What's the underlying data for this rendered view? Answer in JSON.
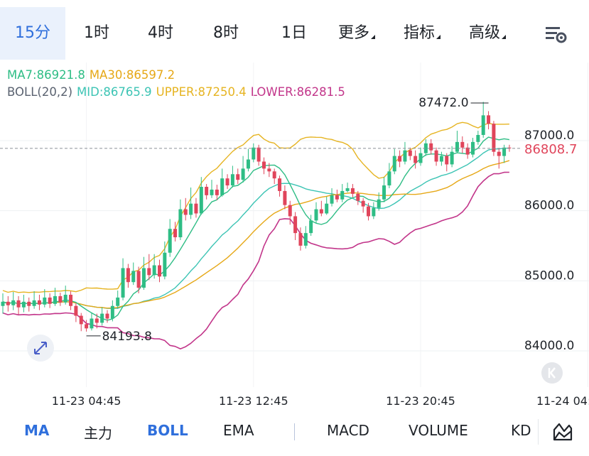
{
  "tabs": [
    {
      "label": "15分",
      "active": true
    },
    {
      "label": "1时"
    },
    {
      "label": "4时"
    },
    {
      "label": "8时"
    },
    {
      "label": "1日"
    },
    {
      "label": "更多",
      "caret": true
    },
    {
      "label": "指标",
      "caret": true
    },
    {
      "label": "高级",
      "caret": true
    }
  ],
  "settings_icon": "chart-settings-icon",
  "legend": {
    "ma7": "MA7:86921.8",
    "ma30": "MA30:86597.2",
    "boll": "BOLL(20,2)",
    "mid": "MID:86765.9",
    "upper": "UPPER:87250.4",
    "lower": "LOWER:86281.5"
  },
  "colors": {
    "accent": "#2f6fdc",
    "up": "#2ebd85",
    "down": "#e0455b",
    "ma7": "#2ebd85",
    "ma30": "#e6a817",
    "mid": "#3cc4b4",
    "upper": "#e6b422",
    "lower": "#c2358a",
    "price": "#e0455b"
  },
  "bottom_indicators": [
    {
      "label": "MA",
      "active": true
    },
    {
      "label": "主力"
    },
    {
      "label": "BOLL",
      "active": true
    },
    {
      "label": "EMA"
    },
    {
      "label": "MACD"
    },
    {
      "label": "VOLUME"
    },
    {
      "label": "KD"
    }
  ],
  "chart_data": {
    "type": "candlestick",
    "y_ticks": [
      "87000.0",
      "86000.0",
      "85000.0",
      "84000.0"
    ],
    "y_tick_values": [
      87000,
      86000,
      85000,
      84000
    ],
    "ylim": [
      83500,
      88600
    ],
    "x_ticks": [
      "11-23 04:45",
      "11-23 12:45",
      "11-23 20:45",
      "11-24 04:45"
    ],
    "x_tick_index": [
      16,
      48,
      80,
      112
    ],
    "current_price": "86808.7",
    "current_price_value": 86808.7,
    "high_label": "87472.0",
    "high_value": 87472.0,
    "high_index": 93,
    "low_label": "84193.8",
    "low_value": 84193.8,
    "low_index": 16,
    "candles": [
      [
        84560,
        84620,
        84740,
        84450
      ],
      [
        84620,
        84570,
        84700,
        84480
      ],
      [
        84570,
        84640,
        84760,
        84500
      ],
      [
        84640,
        84540,
        84700,
        84440
      ],
      [
        84540,
        84620,
        84720,
        84470
      ],
      [
        84620,
        84560,
        84680,
        84480
      ],
      [
        84560,
        84640,
        84770,
        84520
      ],
      [
        84640,
        84580,
        84720,
        84500
      ],
      [
        84580,
        84680,
        84800,
        84540
      ],
      [
        84680,
        84590,
        84740,
        84530
      ],
      [
        84590,
        84700,
        84820,
        84560
      ],
      [
        84700,
        84610,
        84750,
        84560
      ],
      [
        84610,
        84720,
        84850,
        84580
      ],
      [
        84720,
        84560,
        84770,
        84500
      ],
      [
        84560,
        84420,
        84600,
        84330
      ],
      [
        84420,
        84300,
        84460,
        84200
      ],
      [
        84300,
        84240,
        84360,
        84194
      ],
      [
        84240,
        84380,
        84460,
        84210
      ],
      [
        84380,
        84320,
        84450,
        84240
      ],
      [
        84320,
        84450,
        84540,
        84280
      ],
      [
        84450,
        84380,
        84500,
        84320
      ],
      [
        84380,
        84560,
        84640,
        84340
      ],
      [
        84560,
        84680,
        84780,
        84520
      ],
      [
        84680,
        85100,
        85240,
        84640
      ],
      [
        85100,
        84900,
        85160,
        84820
      ],
      [
        84900,
        85060,
        85180,
        84860
      ],
      [
        85060,
        84820,
        85120,
        84740
      ],
      [
        84820,
        85100,
        85260,
        84790
      ],
      [
        85100,
        85000,
        85300,
        84930
      ],
      [
        85000,
        85140,
        85300,
        84950
      ],
      [
        85140,
        84980,
        85220,
        84900
      ],
      [
        84980,
        85320,
        85480,
        84940
      ],
      [
        85320,
        85660,
        85800,
        85260
      ],
      [
        85660,
        85540,
        85760,
        85480
      ],
      [
        85540,
        85940,
        86080,
        85500
      ],
      [
        85940,
        85860,
        86100,
        85780
      ],
      [
        85860,
        86020,
        86250,
        85800
      ],
      [
        86020,
        85880,
        86100,
        85820
      ],
      [
        85880,
        86260,
        86400,
        85860
      ],
      [
        86260,
        86140,
        86300,
        86080
      ],
      [
        86140,
        86220,
        86360,
        86100
      ],
      [
        86220,
        86140,
        86290,
        86070
      ],
      [
        86140,
        86380,
        86520,
        86120
      ],
      [
        86380,
        86280,
        86440,
        86230
      ],
      [
        86280,
        86440,
        86560,
        86250
      ],
      [
        86440,
        86360,
        86520,
        86300
      ],
      [
        86360,
        86520,
        86700,
        86320
      ],
      [
        86520,
        86650,
        86800,
        86480
      ],
      [
        86650,
        86820,
        86880,
        86610
      ],
      [
        86820,
        86620,
        86860,
        86560
      ],
      [
        86620,
        86520,
        86680,
        86440
      ],
      [
        86520,
        86480,
        86600,
        86400
      ],
      [
        86480,
        86380,
        86520,
        86300
      ],
      [
        86380,
        86200,
        86420,
        86120
      ],
      [
        86200,
        86000,
        86280,
        85940
      ],
      [
        86000,
        85840,
        86060,
        85720
      ],
      [
        85840,
        85600,
        85900,
        85500
      ],
      [
        85600,
        85420,
        85680,
        85350
      ],
      [
        85420,
        85600,
        85700,
        85380
      ],
      [
        85600,
        85780,
        85860,
        85560
      ],
      [
        85780,
        85940,
        86040,
        85740
      ],
      [
        85940,
        85880,
        86060,
        85840
      ],
      [
        85880,
        86020,
        86120,
        85860
      ],
      [
        86020,
        86140,
        86240,
        85980
      ],
      [
        86140,
        86080,
        86220,
        86040
      ],
      [
        86080,
        86200,
        86300,
        86040
      ],
      [
        86200,
        86240,
        86320,
        86180
      ],
      [
        86240,
        86160,
        86300,
        86110
      ],
      [
        86160,
        86060,
        86200,
        86000
      ],
      [
        86060,
        85980,
        86100,
        85890
      ],
      [
        85980,
        85840,
        86030,
        85780
      ],
      [
        85840,
        85960,
        86040,
        85800
      ],
      [
        85960,
        86080,
        86180,
        85920
      ],
      [
        86080,
        86280,
        86400,
        86040
      ],
      [
        86280,
        86480,
        86600,
        86240
      ],
      [
        86480,
        86700,
        86800,
        86440
      ],
      [
        86700,
        86620,
        86780,
        86540
      ],
      [
        86620,
        86780,
        86900,
        86580
      ],
      [
        86780,
        86700,
        86820,
        86640
      ],
      [
        86700,
        86600,
        86780,
        86520
      ],
      [
        86600,
        86740,
        86820,
        86560
      ],
      [
        86740,
        86880,
        86940,
        86700
      ],
      [
        86880,
        86780,
        86940,
        86720
      ],
      [
        86780,
        86620,
        86820,
        86560
      ],
      [
        86620,
        86700,
        86760,
        86560
      ],
      [
        86700,
        86580,
        86740,
        86480
      ],
      [
        86580,
        86760,
        86840,
        86540
      ],
      [
        86760,
        86900,
        87060,
        86740
      ],
      [
        86900,
        86820,
        86980,
        86740
      ],
      [
        86820,
        86720,
        86880,
        86660
      ],
      [
        86720,
        86900,
        86960,
        86680
      ],
      [
        86900,
        87000,
        87060,
        86860
      ],
      [
        87000,
        87280,
        87472,
        86960
      ],
      [
        87280,
        87160,
        87340,
        87080
      ],
      [
        87160,
        86760,
        87200,
        86700
      ],
      [
        86760,
        86700,
        86800,
        86520
      ],
      [
        86700,
        86820,
        86860,
        86600
      ],
      [
        86820,
        86809,
        86860,
        86760
      ]
    ]
  }
}
